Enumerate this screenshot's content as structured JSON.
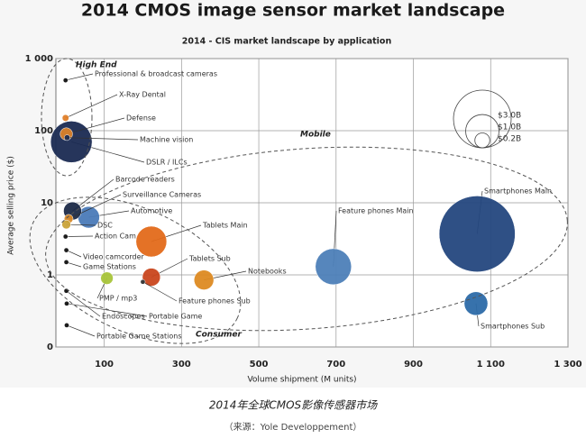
{
  "chart_data": {
    "type": "bubble",
    "title": "2014 CMOS image sensor market landscape",
    "subtitle": "2014 - CIS market landscape by application",
    "x_label": "Volume shipment (M units)",
    "y_label": "Average selling price ($)",
    "log_y": true,
    "grid": true,
    "xlim": [
      -25,
      1300
    ],
    "xticks": [
      100,
      300,
      500,
      700,
      900,
      {
        "value": 1100,
        "label": "1 100"
      },
      {
        "value": 1300,
        "label": "1 300"
      }
    ],
    "ylim": [
      0.1,
      1000
    ],
    "yticks": [
      {
        "value": 1000,
        "label": "1 000"
      },
      100,
      10,
      1,
      {
        "value": 0.1,
        "label": "0"
      }
    ],
    "annotations": [
      "High End",
      "Mobile",
      "Consumer"
    ],
    "size_legend": [
      {
        "value": 3.0,
        "label": "$3.0B"
      },
      {
        "value": 1.0,
        "label": "$1.0B"
      },
      {
        "value": 0.2,
        "label": "$0.2B"
      }
    ],
    "points": [
      {
        "name": "Professional & broadcast cameras",
        "x": 0,
        "y": 500,
        "size": 0.02,
        "color": "#111111"
      },
      {
        "name": "X-Ray Dental",
        "x": 0,
        "y": 150,
        "size": 0.04,
        "color": "#e0802a"
      },
      {
        "name": "Defense",
        "x": 2,
        "y": 90,
        "size": 0.14,
        "color": "#d9822b"
      },
      {
        "name": "Machine vision",
        "x": 4,
        "y": 80,
        "size": 0.03,
        "color": "#1f2d50"
      },
      {
        "name": "DSLR / ILCs",
        "x": 15,
        "y": 70,
        "size": 1.55,
        "color": "#1a2a52"
      },
      {
        "name": "Barcode readers",
        "x": 18,
        "y": 7.7,
        "size": 0.29,
        "color": "#1c2a48"
      },
      {
        "name": "Surveillance Cameras",
        "x": 8,
        "y": 6,
        "size": 0.07,
        "color": "#d88a2a"
      },
      {
        "name": "Automotive",
        "x": 60,
        "y": 6.3,
        "size": 0.42,
        "color": "#4a7ab8"
      },
      {
        "name": "DSC",
        "x": 2,
        "y": 5,
        "size": 0.07,
        "color": "#c9a33a"
      },
      {
        "name": "Action Cam",
        "x": 0,
        "y": 3.4,
        "size": 0.02,
        "color": "#111111"
      },
      {
        "name": "Tablets Main",
        "x": 222,
        "y": 2.9,
        "size": 0.85,
        "color": "#e36a1a"
      },
      {
        "name": "Video camcorder",
        "x": 2,
        "y": 2.2,
        "size": 0.02,
        "color": "#111111"
      },
      {
        "name": "Game Stations",
        "x": 2,
        "y": 1.5,
        "size": 0.02,
        "color": "#111111"
      },
      {
        "name": "Tablets Sub",
        "x": 222,
        "y": 0.93,
        "size": 0.29,
        "color": "#c9461e"
      },
      {
        "name": "Notebooks",
        "x": 358,
        "y": 0.85,
        "size": 0.35,
        "color": "#dd8a22"
      },
      {
        "name": "Feature phones Sub",
        "x": 200,
        "y": 0.8,
        "size": 0.02,
        "color": "#333333"
      },
      {
        "name": "PMP / mp3",
        "x": 107,
        "y": 0.9,
        "size": 0.14,
        "color": "#a8c43a"
      },
      {
        "name": "Endoscopes",
        "x": 2,
        "y": 0.6,
        "size": 0.02,
        "color": "#111111"
      },
      {
        "name": "Portable Game",
        "x": 3,
        "y": 0.4,
        "size": 0.02,
        "color": "#111111"
      },
      {
        "name": "Portable Game Stations",
        "x": 3,
        "y": 0.2,
        "size": 0.02,
        "color": "#111111"
      },
      {
        "name": "Feature phones Main",
        "x": 693,
        "y": 1.3,
        "size": 1.17,
        "color": "#4d7fb8"
      },
      {
        "name": "Smartphones Main",
        "x": 1065,
        "y": 3.7,
        "size": 5.2,
        "color": "#24477e"
      },
      {
        "name": "Smartphones Sub",
        "x": 1062,
        "y": 0.4,
        "size": 0.5,
        "color": "#2c6aa8"
      }
    ]
  },
  "caption": "2014年全球CMOS影像传感器市场",
  "source": "（来源：Yole Developpement）"
}
